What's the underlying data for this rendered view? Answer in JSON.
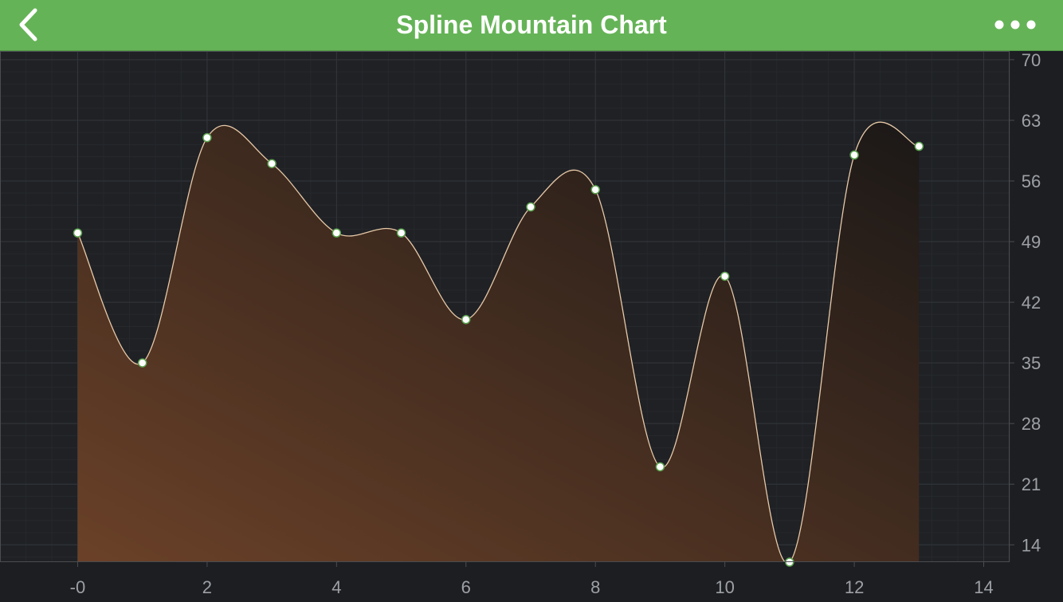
{
  "nav": {
    "title": "Spline Mountain Chart",
    "back_icon": "chevron-left-icon",
    "more_icon": "more-horizontal-icon",
    "bar_color": "#65b357"
  },
  "chart_data": {
    "type": "area",
    "subtype": "spline-mountain",
    "title": "",
    "xlabel": "",
    "ylabel": "",
    "xlim": [
      -1.2,
      14.4
    ],
    "ylim": [
      12,
      71
    ],
    "x_ticks": [
      0,
      2,
      4,
      6,
      8,
      10,
      12,
      14
    ],
    "x_tick_labels": [
      "-0",
      "2",
      "4",
      "6",
      "8",
      "10",
      "12",
      "14"
    ],
    "y_ticks": [
      14,
      21,
      28,
      35,
      42,
      49,
      56,
      63,
      70
    ],
    "y_axis_position": "right",
    "grid": true,
    "series": [
      {
        "x": [
          0,
          1,
          2,
          3,
          4,
          5,
          6,
          7,
          8,
          9,
          10,
          11,
          12,
          13
        ],
        "values": [
          50,
          35,
          61,
          58,
          50,
          50,
          40,
          53,
          55,
          23,
          45,
          12,
          59,
          60
        ],
        "line_color": "#e7c9a8",
        "fill_color_start": "#6b4128",
        "fill_color_end": "#1b1817",
        "marker_fill": "#ffffff",
        "marker_stroke": "#5aa04e"
      }
    ],
    "colors": {
      "background": "#1c1e22",
      "plot_background": "#1f2125",
      "grid_major": "#33363b",
      "grid_minor": "#26282c",
      "axis_text": "#9da0a5",
      "border": "#4a4c50"
    }
  }
}
